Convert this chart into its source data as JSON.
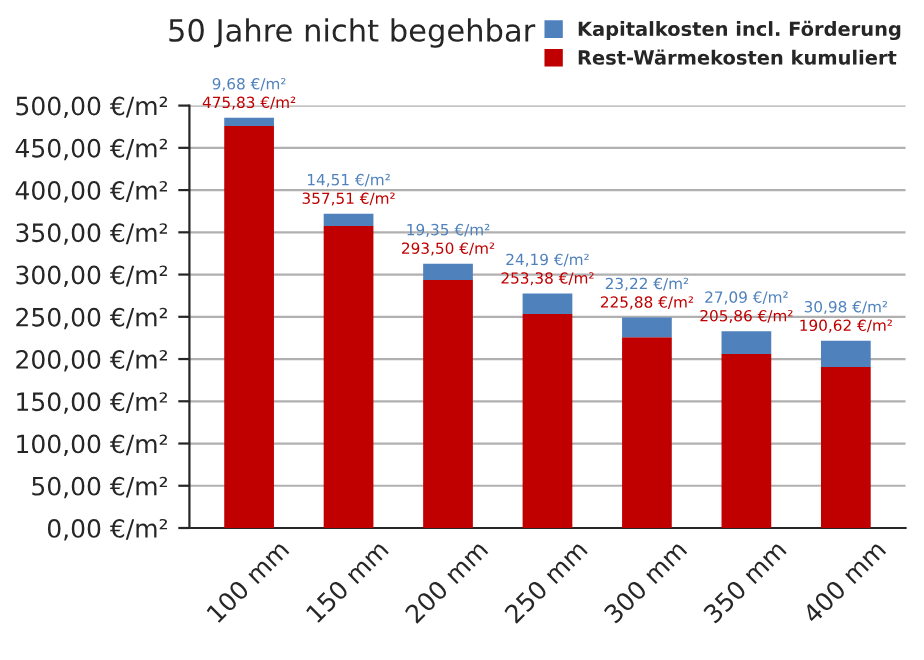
{
  "chart_data": {
    "type": "bar",
    "title": "50 Jahre nicht begehbar",
    "stacked": true,
    "categories": [
      "100 mm",
      "150 mm",
      "200 mm",
      "250 mm",
      "300 mm",
      "350 mm",
      "400 mm"
    ],
    "series": [
      {
        "name": "Rest-Wärmekosten kumuliert",
        "color": "#c00000",
        "values": [
          475.83,
          357.51,
          293.5,
          253.38,
          225.88,
          205.86,
          190.62
        ],
        "value_labels": [
          "475,83 €/m²",
          "357,51 €/m²",
          "293,50 €/m²",
          "253,38 €/m²",
          "225,88 €/m²",
          "205,86 €/m²",
          "190,62 €/m²"
        ]
      },
      {
        "name": "Kapitalkosten incl. Förderung",
        "color": "#4f81bd",
        "values": [
          9.68,
          14.51,
          19.35,
          24.19,
          23.22,
          27.09,
          30.98
        ],
        "value_labels": [
          "9,68 €/m²",
          "14,51 €/m²",
          "19,35 €/m²",
          "24,19 €/m²",
          "23,22 €/m²",
          "27,09 €/m²",
          "30,98 €/m²"
        ]
      }
    ],
    "ylim": [
      0,
      500
    ],
    "yticks": [
      {
        "value": 0,
        "label": "0,00 €/m²"
      },
      {
        "value": 50,
        "label": "50,00 €/m²"
      },
      {
        "value": 100,
        "label": "100,00 €/m²"
      },
      {
        "value": 150,
        "label": "150,00 €/m²"
      },
      {
        "value": 200,
        "label": "200,00 €/m²"
      },
      {
        "value": 250,
        "label": "250,00 €/m²"
      },
      {
        "value": 300,
        "label": "300,00 €/m²"
      },
      {
        "value": 350,
        "label": "350,00 €/m²"
      },
      {
        "value": 400,
        "label": "400,00 €/m²"
      },
      {
        "value": 450,
        "label": "450,00 €/m²"
      },
      {
        "value": 500,
        "label": "500,00 €/m²"
      }
    ],
    "grid": "y",
    "legend": "top right"
  }
}
